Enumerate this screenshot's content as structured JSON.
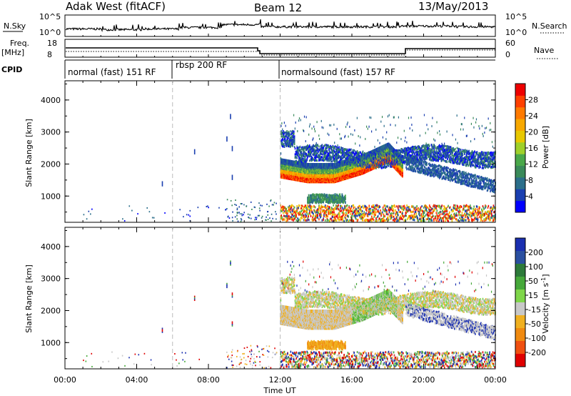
{
  "header": {
    "station": "Adak West (fitACF)",
    "beam": "Beam 12",
    "date": "13/May/2013"
  },
  "top_panels": {
    "nsky_label": "N.Sky",
    "nsky_ticks": [
      "10^5",
      "10^0"
    ],
    "nsearch_label": "N.Search",
    "freq_label": "Freq.",
    "freq_unit": "[MHz]",
    "freq_ticks": [
      "18",
      "8"
    ],
    "nave_ticks": [
      "60",
      "0"
    ],
    "nave_label": "Nave",
    "cpid_label": "CPID"
  },
  "cpid_modes": [
    {
      "label": "normal (fast) 151 RF",
      "start_hour": 0,
      "end_hour": 6
    },
    {
      "label": "rbsp 200 RF",
      "start_hour": 6,
      "end_hour": 12
    },
    {
      "label": "normalsound (fast) 157 RF",
      "start_hour": 12,
      "end_hour": 24
    }
  ],
  "x_axis": {
    "label": "Time UT",
    "ticks": [
      "00:00",
      "04:00",
      "08:00",
      "12:00",
      "16:00",
      "20:00",
      "00:00"
    ],
    "range_hours": [
      0,
      24
    ]
  },
  "chart_data": [
    {
      "type": "heatmap",
      "name": "Power",
      "ylabel": "Slant Range [km]",
      "ylim": [
        180,
        4600
      ],
      "y_ticks": [
        "1000",
        "2000",
        "3000",
        "4000"
      ],
      "colorbar": {
        "label": "Power [dB]",
        "ticks": [
          "4",
          "8",
          "12",
          "16",
          "20",
          "24",
          "28"
        ],
        "colors": [
          "#0000ff",
          "#1a3fb0",
          "#2b6e8a",
          "#3a8a5a",
          "#4aa84a",
          "#9fd02a",
          "#e8c800",
          "#f7a800",
          "#ff7a00",
          "#ff4000",
          "#ee0000"
        ]
      },
      "features": [
        {
          "name": "main band",
          "x_hours": [
            12.0,
            13.5,
            15.0,
            16.5,
            18.0,
            18.5
          ],
          "y_km": [
            1700,
            1550,
            1550,
            1800,
            2200,
            1900
          ]
        },
        {
          "name": "upper band",
          "x_hours": [
            12.0,
            14.0,
            16.0,
            18.0,
            20.0,
            24.0
          ],
          "y_km": [
            2100,
            2200,
            2100,
            2000,
            2300,
            2200
          ]
        },
        {
          "name": "lower echo",
          "x_hours": [
            13.5,
            15.5
          ],
          "y_km": [
            850,
            850
          ]
        }
      ]
    },
    {
      "type": "heatmap",
      "name": "Velocity",
      "ylabel": "Slant Range [km]",
      "ylim": [
        180,
        4600
      ],
      "y_ticks": [
        "1000",
        "2000",
        "3000",
        "4000"
      ],
      "colorbar": {
        "label": "Velocity [m s^-1]",
        "ticks": [
          "200",
          "100",
          "50",
          "15",
          "-15",
          "-50",
          "-100",
          "-200"
        ],
        "colors": [
          "#1a2fb0",
          "#2a4fa0",
          "#2d7a3a",
          "#46a83a",
          "#7fd64a",
          "#c8c8c8",
          "#f0b020",
          "#f08a10",
          "#f05010",
          "#e00000"
        ]
      }
    }
  ]
}
